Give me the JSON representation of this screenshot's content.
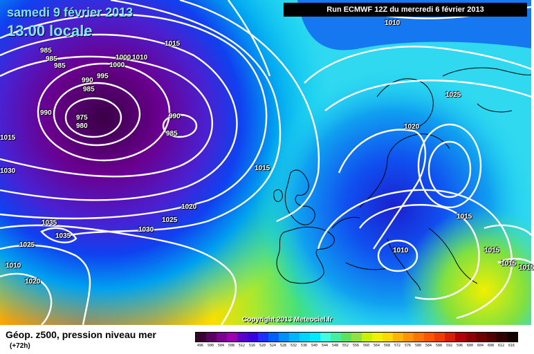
{
  "header": {
    "date": "samedi 9 février 2013",
    "time": "13.00 locale",
    "run": "Run ECMWF 12Z du mercredi 6 février 2013"
  },
  "copyright": "Copyright 2013 Meteociel.fr",
  "footer": {
    "caption": "Géop. z500, pression niveau mer",
    "lead": "(+72h)"
  },
  "legend": {
    "values": [
      "496",
      "500",
      "504",
      "508",
      "512",
      "516",
      "520",
      "524",
      "528",
      "532",
      "536",
      "540",
      "544",
      "548",
      "552",
      "556",
      "560",
      "564",
      "568",
      "572",
      "576",
      "580",
      "584",
      "588",
      "592",
      "596",
      "600",
      "604",
      "608",
      "612",
      "616"
    ],
    "colors": [
      "#3a0030",
      "#5a0060",
      "#7a0090",
      "#9a00b0",
      "#5b00c8",
      "#3c00e0",
      "#1e30ff",
      "#0060ff",
      "#0090ff",
      "#00b4ff",
      "#00d4ff",
      "#00eaff",
      "#40ffe0",
      "#40f0a0",
      "#60e060",
      "#90e040",
      "#c8f000",
      "#f0f000",
      "#ffd800",
      "#ffb400",
      "#ff9400",
      "#ff7400",
      "#ff5400",
      "#f03c00",
      "#d82000",
      "#b40000",
      "#900000",
      "#700000",
      "#500000",
      "#300000",
      "#100000"
    ]
  },
  "isobar_labels": [
    "1010",
    "1015",
    "1000",
    "1010",
    "1000",
    "985",
    "985",
    "985",
    "995",
    "990",
    "985",
    "990",
    "975",
    "980",
    "990",
    "985",
    "1015",
    "1015",
    "1030",
    "1020",
    "1025",
    "1030",
    "1035",
    "1035",
    "1025",
    "1010",
    "1020",
    "1025",
    "1020",
    "1015",
    "1010",
    "1015",
    "1015",
    "1015"
  ],
  "map_colors": {
    "deep_low": "#3a0045",
    "low": "#7a10a0",
    "trough": "#2020d8",
    "mid_blue": "#0a60f0",
    "cyan": "#00c8f0",
    "aqua": "#40f0e0",
    "green": "#40e080",
    "lime": "#a8e830",
    "yellow": "#f0f000",
    "orange": "#ff9a00",
    "deep_orange": "#ff7000",
    "isobar": "#ffffff"
  }
}
